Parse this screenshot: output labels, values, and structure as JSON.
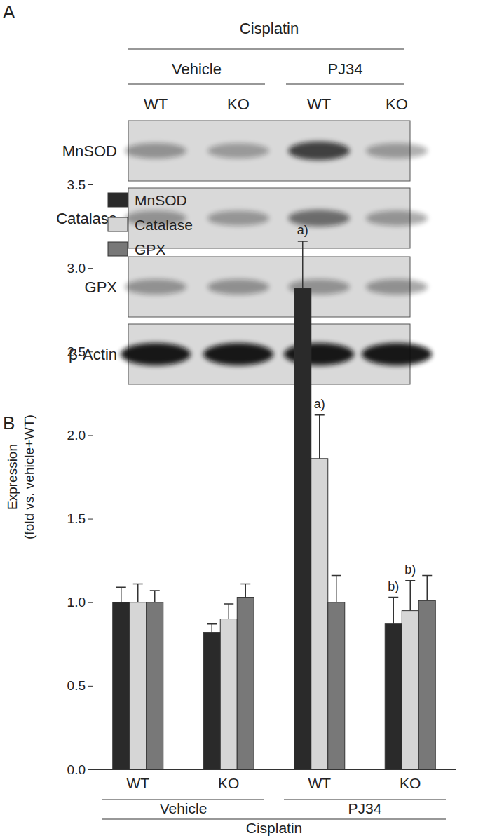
{
  "blot": {
    "panel_label": "A",
    "treatment": "Cisplatin",
    "groups": [
      {
        "label": "Vehicle",
        "lanes": [
          "WT",
          "KO"
        ]
      },
      {
        "label": "PJ34",
        "lanes": [
          "WT",
          "KO"
        ]
      }
    ],
    "rows": [
      "MnSOD",
      "Catalase",
      "GPX",
      "β-Actin"
    ]
  },
  "chart_data": {
    "type": "bar",
    "panel_label": "B",
    "categories": [
      "WT",
      "KO",
      "WT",
      "KO"
    ],
    "groups": [
      "Vehicle",
      "PJ34"
    ],
    "group_title": "Cisplatin",
    "y_label": [
      "Expression",
      "(fold vs. vehicle+WT)"
    ],
    "ylim": [
      0,
      3.5
    ],
    "yticks": [
      {
        "value": 0,
        "label": "0.0"
      },
      {
        "value": 0.5,
        "label": "0.5"
      },
      {
        "value": 1,
        "label": "1.0"
      },
      {
        "value": 1.5,
        "label": "1.5"
      },
      {
        "value": 2,
        "label": "2.0"
      },
      {
        "value": 2.5,
        "label": "2.5"
      },
      {
        "value": 3,
        "label": "3.0"
      },
      {
        "value": 3.5,
        "label": "3.5"
      }
    ],
    "legend": "top-left",
    "series": [
      {
        "name": "MnSOD",
        "color": "#2a2a2a",
        "values": [
          1.0,
          0.82,
          2.88,
          0.87
        ],
        "errors": [
          0.09,
          0.05,
          0.28,
          0.16
        ],
        "annotations": [
          null,
          null,
          "a)",
          "b)"
        ]
      },
      {
        "name": "Catalase",
        "color": "#d6d6d6",
        "values": [
          1.0,
          0.9,
          1.86,
          0.95
        ],
        "errors": [
          0.11,
          0.09,
          0.26,
          0.18
        ],
        "annotations": [
          null,
          null,
          "a)",
          "b)"
        ]
      },
      {
        "name": "GPX",
        "color": "#787878",
        "values": [
          1.0,
          1.03,
          1.0,
          1.01
        ],
        "errors": [
          0.07,
          0.08,
          0.16,
          0.15
        ],
        "annotations": [
          null,
          null,
          null,
          null
        ]
      }
    ]
  }
}
